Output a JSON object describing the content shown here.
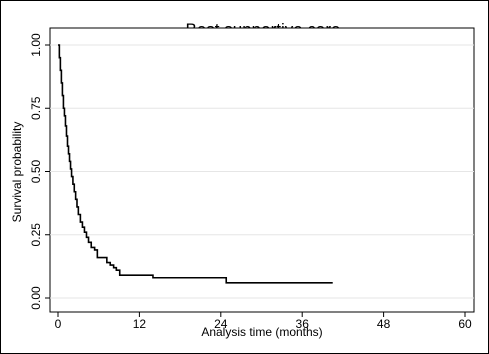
{
  "chart_data": {
    "type": "line",
    "step": true,
    "title": "Best supportive care",
    "xlabel": "Analysis time (months)",
    "ylabel": "Survival probability",
    "xlim": [
      0,
      60
    ],
    "ylim": [
      0,
      1
    ],
    "xticks": [
      0,
      12,
      24,
      36,
      48,
      60
    ],
    "yticks": [
      0.0,
      0.25,
      0.5,
      0.75,
      1.0
    ],
    "ytick_labels": [
      "0.00",
      "0.25",
      "0.50",
      "0.75",
      "1.00"
    ],
    "grid": "horizontal",
    "series": [
      {
        "color": "#000000",
        "points": [
          [
            0,
            1.0
          ],
          [
            0.2,
            0.95
          ],
          [
            0.35,
            0.9
          ],
          [
            0.5,
            0.85
          ],
          [
            0.65,
            0.8
          ],
          [
            0.8,
            0.75
          ],
          [
            0.95,
            0.72
          ],
          [
            1.1,
            0.68
          ],
          [
            1.25,
            0.64
          ],
          [
            1.4,
            0.6
          ],
          [
            1.55,
            0.57
          ],
          [
            1.7,
            0.54
          ],
          [
            1.85,
            0.51
          ],
          [
            2.0,
            0.48
          ],
          [
            2.2,
            0.45
          ],
          [
            2.4,
            0.42
          ],
          [
            2.6,
            0.39
          ],
          [
            2.8,
            0.36
          ],
          [
            3.0,
            0.33
          ],
          [
            3.3,
            0.3
          ],
          [
            3.6,
            0.28
          ],
          [
            3.9,
            0.26
          ],
          [
            4.2,
            0.24
          ],
          [
            4.5,
            0.22
          ],
          [
            4.9,
            0.2
          ],
          [
            5.4,
            0.19
          ],
          [
            5.8,
            0.16
          ],
          [
            7.2,
            0.14
          ],
          [
            7.7,
            0.13
          ],
          [
            8.2,
            0.12
          ],
          [
            8.6,
            0.11
          ],
          [
            9.1,
            0.09
          ],
          [
            14.0,
            0.08
          ],
          [
            24.8,
            0.06
          ],
          [
            40.5,
            0.06
          ]
        ]
      }
    ]
  }
}
